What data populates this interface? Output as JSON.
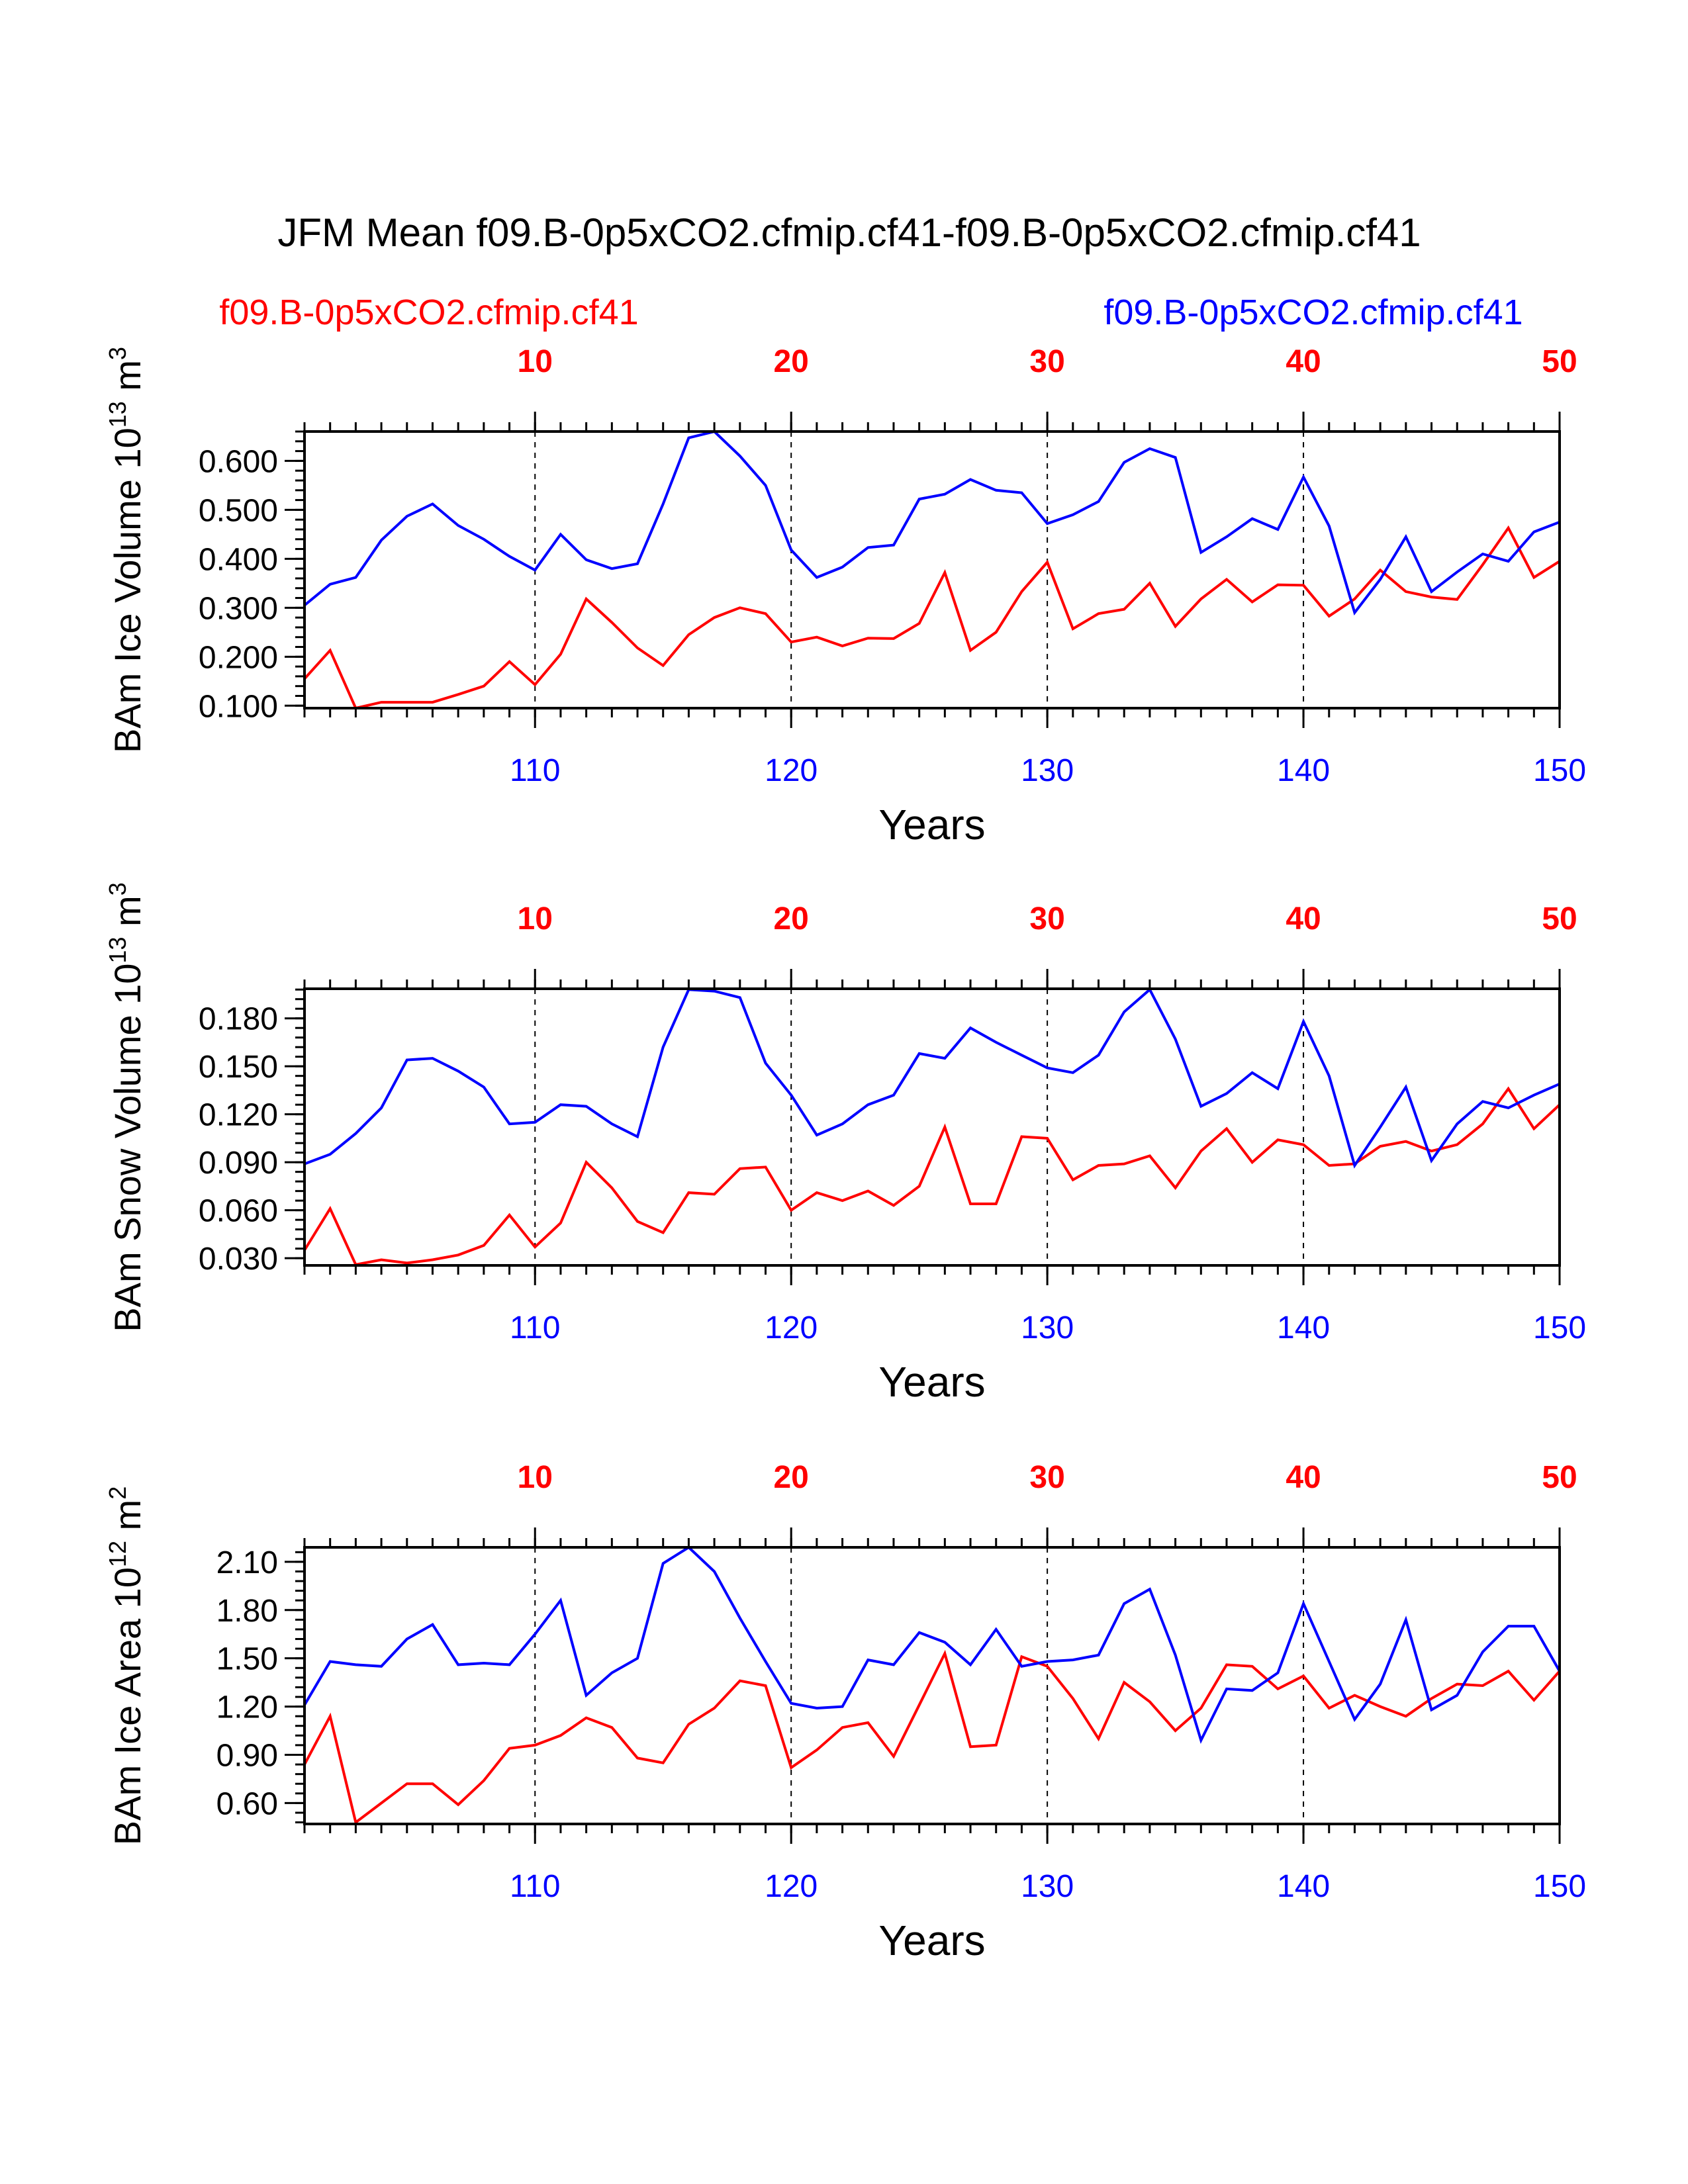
{
  "title": "JFM Mean f09.B-0p5xCO2.cfmip.cf41-f09.B-0p5xCO2.cfmip.cf41",
  "legend": {
    "left": {
      "text": "f09.B-0p5xCO2.cfmip.cf41",
      "color": "#ff0000"
    },
    "right": {
      "text": "f09.B-0p5xCO2.cfmip.cf41",
      "color": "#0000ff"
    }
  },
  "chart_data": [
    {
      "type": "line",
      "ylabel": "BAm Ice Volume",
      "yunit_base": "10",
      "yunit_exp": "13",
      "yunit_unit": "m",
      "yunit_unit_exp": "3",
      "xlabel": "Years",
      "xlim": [
        101,
        150
      ],
      "ylim": [
        0.095,
        0.66
      ],
      "yticks": [
        0.1,
        0.2,
        0.3,
        0.4,
        0.5,
        0.6
      ],
      "ytick_labels": [
        "0.100",
        "0.200",
        "0.300",
        "0.400",
        "0.500",
        "0.600"
      ],
      "ytick_minor": 0.02,
      "bottom_ticks": [
        110,
        120,
        130,
        140,
        150
      ],
      "bottom_tick_labels": [
        "110",
        "120",
        "130",
        "140",
        "150"
      ],
      "top_ticks": [
        110,
        120,
        130,
        140,
        150
      ],
      "top_tick_labels": [
        "10",
        "20",
        "30",
        "40",
        "50"
      ],
      "series": [
        {
          "name": "f09.B-0p5xCO2.cfmip.cf41 (red, top axis)",
          "color": "#ff0000",
          "x": [
            101,
            102,
            103,
            104,
            105,
            106,
            107,
            108,
            109,
            110,
            111,
            112,
            113,
            114,
            115,
            116,
            117,
            118,
            119,
            120,
            121,
            122,
            123,
            124,
            125,
            126,
            127,
            128,
            129,
            130,
            131,
            132,
            133,
            134,
            135,
            136,
            137,
            138,
            139,
            140,
            141,
            142,
            143,
            144,
            145,
            146,
            147,
            148,
            149,
            150
          ],
          "values": [
            0.155,
            0.213,
            0.095,
            0.107,
            0.107,
            0.107,
            0.123,
            0.14,
            0.19,
            0.143,
            0.205,
            0.318,
            0.27,
            0.218,
            0.182,
            0.245,
            0.28,
            0.3,
            0.288,
            0.23,
            0.24,
            0.222,
            0.238,
            0.237,
            0.268,
            0.372,
            0.213,
            0.25,
            0.333,
            0.393,
            0.257,
            0.288,
            0.297,
            0.35,
            0.262,
            0.318,
            0.358,
            0.312,
            0.347,
            0.346,
            0.283,
            0.318,
            0.377,
            0.333,
            0.322,
            0.317,
            0.388,
            0.463,
            0.362,
            0.395
          ]
        },
        {
          "name": "f09.B-0p5xCO2.cfmip.cf41 (blue, bottom axis)",
          "color": "#0000ff",
          "x": [
            101,
            102,
            103,
            104,
            105,
            106,
            107,
            108,
            109,
            110,
            111,
            112,
            113,
            114,
            115,
            116,
            117,
            118,
            119,
            120,
            121,
            122,
            123,
            124,
            125,
            126,
            127,
            128,
            129,
            130,
            131,
            132,
            133,
            134,
            135,
            136,
            137,
            138,
            139,
            140,
            141,
            142,
            143,
            144,
            145,
            146,
            147,
            148,
            149,
            150
          ],
          "values": [
            0.305,
            0.348,
            0.362,
            0.438,
            0.487,
            0.512,
            0.468,
            0.44,
            0.405,
            0.377,
            0.45,
            0.398,
            0.38,
            0.39,
            0.512,
            0.647,
            0.66,
            0.61,
            0.55,
            0.418,
            0.362,
            0.383,
            0.423,
            0.428,
            0.522,
            0.532,
            0.562,
            0.54,
            0.535,
            0.472,
            0.49,
            0.517,
            0.597,
            0.625,
            0.607,
            0.413,
            0.445,
            0.482,
            0.46,
            0.567,
            0.467,
            0.29,
            0.358,
            0.445,
            0.333,
            0.373,
            0.41,
            0.395,
            0.455,
            0.475
          ]
        }
      ]
    },
    {
      "type": "line",
      "ylabel": "BAm Snow Volume",
      "yunit_base": "10",
      "yunit_exp": "13",
      "yunit_unit": "m",
      "yunit_unit_exp": "3",
      "xlabel": "Years",
      "xlim": [
        101,
        150
      ],
      "ylim": [
        0.0255,
        0.1985
      ],
      "yticks": [
        0.03,
        0.06,
        0.09,
        0.12,
        0.15,
        0.18
      ],
      "ytick_labels": [
        "0.030",
        "0.060",
        "0.090",
        "0.120",
        "0.150",
        "0.180"
      ],
      "ytick_minor": 0.006,
      "bottom_ticks": [
        110,
        120,
        130,
        140,
        150
      ],
      "bottom_tick_labels": [
        "110",
        "120",
        "130",
        "140",
        "150"
      ],
      "top_ticks": [
        110,
        120,
        130,
        140,
        150
      ],
      "top_tick_labels": [
        "10",
        "20",
        "30",
        "40",
        "50"
      ],
      "series": [
        {
          "name": "f09.B-0p5xCO2.cfmip.cf41 (red, top axis)",
          "color": "#ff0000",
          "x": [
            101,
            102,
            103,
            104,
            105,
            106,
            107,
            108,
            109,
            110,
            111,
            112,
            113,
            114,
            115,
            116,
            117,
            118,
            119,
            120,
            121,
            122,
            123,
            124,
            125,
            126,
            127,
            128,
            129,
            130,
            131,
            132,
            133,
            134,
            135,
            136,
            137,
            138,
            139,
            140,
            141,
            142,
            143,
            144,
            145,
            146,
            147,
            148,
            149,
            150
          ],
          "values": [
            0.035,
            0.061,
            0.026,
            0.029,
            0.027,
            0.029,
            0.032,
            0.038,
            0.057,
            0.037,
            0.052,
            0.09,
            0.074,
            0.053,
            0.046,
            0.071,
            0.07,
            0.086,
            0.087,
            0.06,
            0.071,
            0.066,
            0.072,
            0.063,
            0.075,
            0.112,
            0.064,
            0.064,
            0.106,
            0.105,
            0.079,
            0.088,
            0.089,
            0.094,
            0.074,
            0.097,
            0.111,
            0.09,
            0.104,
            0.101,
            0.088,
            0.089,
            0.1,
            0.103,
            0.097,
            0.101,
            0.114,
            0.136,
            0.111,
            0.126
          ]
        },
        {
          "name": "f09.B-0p5xCO2.cfmip.cf41 (blue, bottom axis)",
          "color": "#0000ff",
          "x": [
            101,
            102,
            103,
            104,
            105,
            106,
            107,
            108,
            109,
            110,
            111,
            112,
            113,
            114,
            115,
            116,
            117,
            118,
            119,
            120,
            121,
            122,
            123,
            124,
            125,
            126,
            127,
            128,
            129,
            130,
            131,
            132,
            133,
            134,
            135,
            136,
            137,
            138,
            139,
            140,
            141,
            142,
            143,
            144,
            145,
            146,
            147,
            148,
            149,
            150
          ],
          "values": [
            0.089,
            0.095,
            0.108,
            0.124,
            0.154,
            0.155,
            0.147,
            0.137,
            0.114,
            0.115,
            0.126,
            0.125,
            0.114,
            0.106,
            0.162,
            0.198,
            0.197,
            0.193,
            0.152,
            0.132,
            0.107,
            0.114,
            0.126,
            0.132,
            0.158,
            0.155,
            0.174,
            0.165,
            0.157,
            0.149,
            0.146,
            0.157,
            0.184,
            0.198,
            0.167,
            0.125,
            0.133,
            0.146,
            0.136,
            0.178,
            0.144,
            0.088,
            0.112,
            0.137,
            0.091,
            0.114,
            0.128,
            0.124,
            0.132,
            0.139
          ]
        }
      ]
    },
    {
      "type": "line",
      "ylabel": "BAm Ice Area",
      "yunit_base": "10",
      "yunit_exp": "12",
      "yunit_unit": "m",
      "yunit_unit_exp": "2",
      "xlabel": "Years",
      "xlim": [
        101,
        150
      ],
      "ylim": [
        0.47,
        2.19
      ],
      "yticks": [
        0.6,
        0.9,
        1.2,
        1.5,
        1.8,
        2.1
      ],
      "ytick_labels": [
        "0.60",
        "0.90",
        "1.20",
        "1.50",
        "1.80",
        "2.10"
      ],
      "ytick_minor": 0.06,
      "bottom_ticks": [
        110,
        120,
        130,
        140,
        150
      ],
      "bottom_tick_labels": [
        "110",
        "120",
        "130",
        "140",
        "150"
      ],
      "top_ticks": [
        110,
        120,
        130,
        140,
        150
      ],
      "top_tick_labels": [
        "10",
        "20",
        "30",
        "40",
        "50"
      ],
      "series": [
        {
          "name": "f09.B-0p5xCO2.cfmip.cf41 (red, top axis)",
          "color": "#ff0000",
          "x": [
            101,
            102,
            103,
            104,
            105,
            106,
            107,
            108,
            109,
            110,
            111,
            112,
            113,
            114,
            115,
            116,
            117,
            118,
            119,
            120,
            121,
            122,
            123,
            124,
            125,
            126,
            127,
            128,
            129,
            130,
            131,
            132,
            133,
            134,
            135,
            136,
            137,
            138,
            139,
            140,
            141,
            142,
            143,
            144,
            145,
            146,
            147,
            148,
            149,
            150
          ],
          "values": [
            0.84,
            1.14,
            0.48,
            0.6,
            0.72,
            0.72,
            0.59,
            0.74,
            0.94,
            0.96,
            1.02,
            1.13,
            1.07,
            0.88,
            0.85,
            1.09,
            1.19,
            1.36,
            1.33,
            0.82,
            0.93,
            1.07,
            1.1,
            0.89,
            1.21,
            1.53,
            0.95,
            0.96,
            1.51,
            1.45,
            1.25,
            1.0,
            1.35,
            1.23,
            1.05,
            1.19,
            1.46,
            1.45,
            1.31,
            1.39,
            1.19,
            1.27,
            1.2,
            1.14,
            1.25,
            1.34,
            1.33,
            1.42,
            1.24,
            1.42
          ]
        },
        {
          "name": "f09.B-0p5xCO2.cfmip.cf41 (blue, bottom axis)",
          "color": "#0000ff",
          "x": [
            101,
            102,
            103,
            104,
            105,
            106,
            107,
            108,
            109,
            110,
            111,
            112,
            113,
            114,
            115,
            116,
            117,
            118,
            119,
            120,
            121,
            122,
            123,
            124,
            125,
            126,
            127,
            128,
            129,
            130,
            131,
            132,
            133,
            134,
            135,
            136,
            137,
            138,
            139,
            140,
            141,
            142,
            143,
            144,
            145,
            146,
            147,
            148,
            149,
            150
          ],
          "values": [
            1.21,
            1.48,
            1.46,
            1.45,
            1.62,
            1.71,
            1.46,
            1.47,
            1.46,
            1.65,
            1.86,
            1.27,
            1.41,
            1.5,
            2.09,
            2.19,
            2.04,
            1.75,
            1.48,
            1.22,
            1.19,
            1.2,
            1.49,
            1.46,
            1.66,
            1.6,
            1.46,
            1.68,
            1.45,
            1.48,
            1.49,
            1.52,
            1.84,
            1.93,
            1.52,
            0.99,
            1.31,
            1.3,
            1.41,
            1.84,
            1.48,
            1.12,
            1.34,
            1.74,
            1.18,
            1.27,
            1.54,
            1.7,
            1.7,
            1.42
          ]
        }
      ]
    }
  ]
}
